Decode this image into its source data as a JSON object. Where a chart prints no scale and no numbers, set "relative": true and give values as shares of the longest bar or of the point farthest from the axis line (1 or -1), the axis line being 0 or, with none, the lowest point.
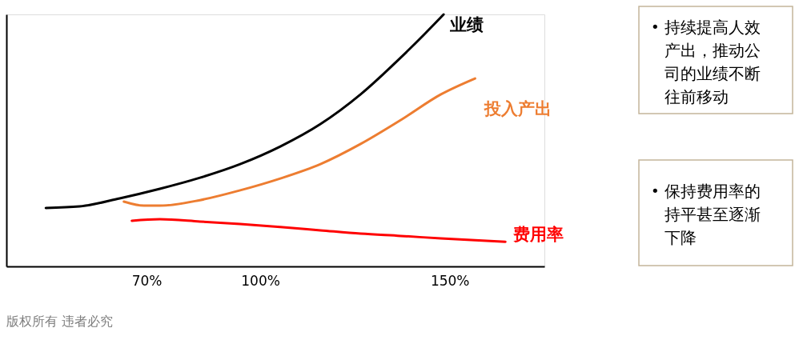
{
  "chart_data": {
    "type": "line",
    "relative": true,
    "grid": false,
    "tick_labels": "x",
    "marker": "none",
    "line_style": "solid",
    "xlim": [
      33,
      175
    ],
    "xticks": [
      {
        "value": 70,
        "label": "70%"
      },
      {
        "value": 100,
        "label": "100%"
      },
      {
        "value": 150,
        "label": "150%"
      }
    ],
    "series": [
      {
        "name": "业绩",
        "color": "#000000",
        "x": [
          43.4,
          52.3,
          62.9,
          73.5,
          84.1,
          94.7,
          105.3,
          115.9,
          126.5,
          137.1,
          143.5,
          148.4
        ],
        "values": [
          0.232,
          0.238,
          0.27,
          0.308,
          0.352,
          0.406,
          0.476,
          0.565,
          0.683,
          0.829,
          0.924,
          1
        ]
      },
      {
        "name": "投入产出",
        "color": "#ed7d31",
        "x": [
          64.0,
          69.3,
          73.5,
          84.1,
          94.7,
          105.3,
          115.9,
          126.5,
          137.1,
          147.7,
          156.7
        ],
        "values": [
          0.257,
          0.241,
          0.241,
          0.263,
          0.302,
          0.349,
          0.406,
          0.486,
          0.581,
          0.683,
          0.746
        ]
      },
      {
        "name": "费用率",
        "color": "#ff0000",
        "x": [
          66.1,
          73.5,
          84.1,
          94.7,
          105.3,
          115.9,
          126.5,
          137.1,
          147.7,
          164.7
        ],
        "values": [
          0.181,
          0.187,
          0.178,
          0.168,
          0.156,
          0.143,
          0.13,
          0.121,
          0.111,
          0.098
        ]
      }
    ],
    "annotations": [
      "版权所有 违者必究",
      "• 持续提高人效产出，推动公司的业绩不断往前移动",
      "• 保持费用率的持平甚至逐渐下降"
    ]
  }
}
